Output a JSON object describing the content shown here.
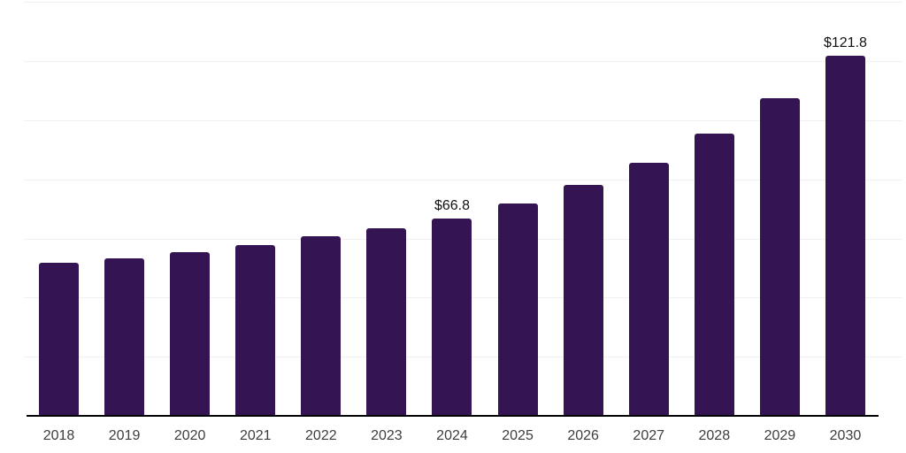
{
  "chart_data": {
    "type": "bar",
    "title": "",
    "xlabel": "",
    "ylabel": "",
    "categories": [
      "2018",
      "2019",
      "2020",
      "2021",
      "2022",
      "2023",
      "2024",
      "2025",
      "2026",
      "2027",
      "2028",
      "2029",
      "2030"
    ],
    "values": [
      51.7,
      53.3,
      55.4,
      57.9,
      60.8,
      63.4,
      66.8,
      72.0,
      78.1,
      85.7,
      95.4,
      107.5,
      121.8
    ],
    "labeled_points": [
      {
        "category": "2024",
        "label": "$66.8"
      },
      {
        "category": "2030",
        "label": "$121.8"
      }
    ],
    "ylim": [
      0,
      140
    ],
    "gridline_step": 20,
    "grid": "horizontal-only",
    "legend_position": "none",
    "colors": {
      "bar": "#341453",
      "gridline": "#f0f0f0",
      "axis_line": "#000000",
      "tick_label": "#3d3d3d",
      "data_label": "#111111",
      "background": "#ffffff"
    }
  }
}
